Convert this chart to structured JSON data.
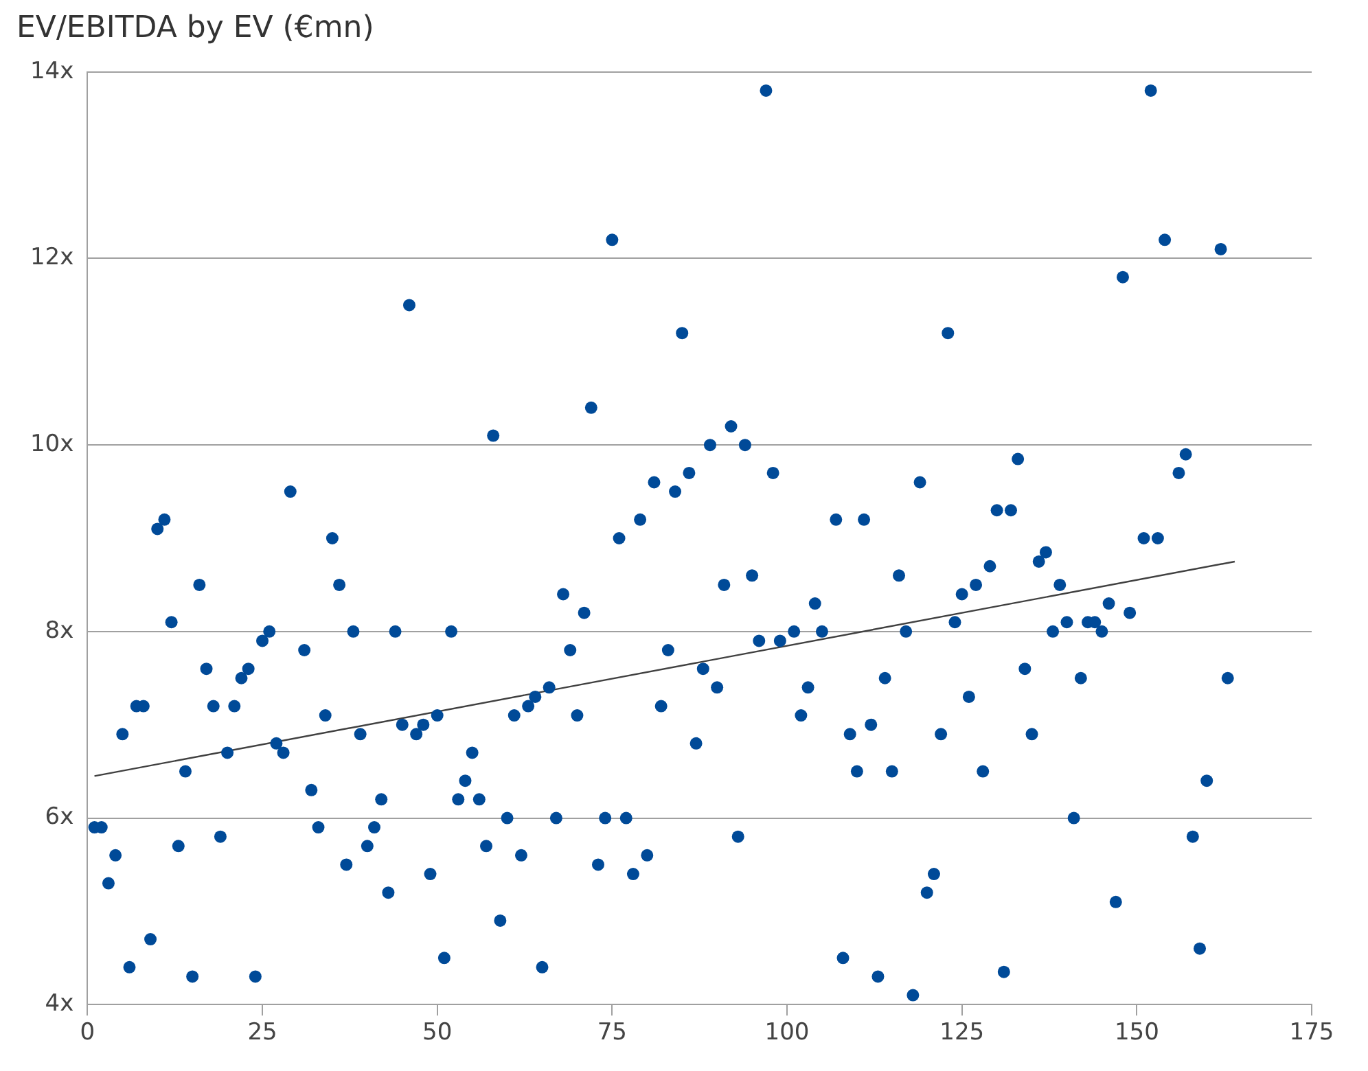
{
  "chart_data": {
    "type": "scatter",
    "title": "EV/EBITDA by EV (€mn)",
    "xlim": [
      0,
      175
    ],
    "xticks": [
      0,
      25,
      50,
      75,
      100,
      125,
      150,
      175
    ],
    "ylim": [
      4,
      14
    ],
    "yticks": [
      {
        "value": 4,
        "label": "4x"
      },
      {
        "value": 6,
        "label": "6x"
      },
      {
        "value": 8,
        "label": "8x"
      },
      {
        "value": 10,
        "label": "10x"
      },
      {
        "value": 12,
        "label": "12x"
      },
      {
        "value": 14,
        "label": "14x"
      }
    ],
    "grid": "y",
    "legend": false,
    "marker": "circle",
    "series": [
      {
        "type": "scatter",
        "color": "#004a98",
        "x": [
          1,
          2,
          3,
          4,
          5,
          6,
          7,
          8,
          9,
          10,
          11,
          12,
          13,
          14,
          15,
          16,
          17,
          18,
          19,
          20,
          21,
          22,
          23,
          24,
          25,
          26,
          27,
          28,
          29,
          31,
          32,
          33,
          34,
          35,
          36,
          37,
          38,
          39,
          40,
          41,
          42,
          43,
          44,
          45,
          46,
          47,
          48,
          49,
          50,
          51,
          52,
          53,
          54,
          55,
          56,
          57,
          58,
          59,
          60,
          61,
          62,
          63,
          64,
          65,
          66,
          67,
          68,
          69,
          70,
          71,
          72,
          73,
          74,
          75,
          76,
          77,
          78,
          79,
          80,
          81,
          82,
          83,
          84,
          85,
          86,
          87,
          88,
          89,
          90,
          91,
          92,
          93,
          94,
          95,
          96,
          97,
          98,
          99,
          101,
          102,
          103,
          104,
          105,
          107,
          108,
          109,
          110,
          111,
          112,
          113,
          114,
          115,
          116,
          117,
          118,
          119,
          120,
          121,
          122,
          123,
          124,
          125,
          126,
          127,
          128,
          129,
          130,
          131,
          132,
          133,
          134,
          135,
          136,
          137,
          138,
          139,
          140,
          141,
          142,
          143,
          144,
          145,
          146,
          147,
          148,
          149,
          151,
          152,
          153,
          154,
          156,
          157,
          158,
          159,
          160,
          162,
          163
        ],
        "values": [
          5.9,
          5.9,
          5.3,
          5.6,
          6.9,
          4.4,
          7.2,
          7.2,
          4.7,
          9.1,
          9.2,
          8.1,
          5.7,
          6.5,
          4.3,
          8.5,
          7.6,
          7.2,
          5.8,
          6.7,
          7.2,
          7.5,
          7.6,
          4.3,
          7.9,
          8.0,
          6.8,
          6.7,
          9.5,
          7.8,
          6.3,
          5.9,
          7.1,
          9.0,
          8.5,
          5.5,
          8.0,
          6.9,
          5.7,
          5.9,
          6.2,
          5.2,
          8.0,
          7.0,
          11.5,
          6.9,
          7.0,
          5.4,
          7.1,
          4.5,
          8.0,
          6.2,
          6.4,
          6.7,
          6.2,
          5.7,
          10.1,
          4.9,
          6.0,
          7.1,
          5.6,
          7.2,
          7.3,
          4.4,
          7.4,
          6.0,
          8.4,
          7.8,
          7.1,
          8.2,
          10.4,
          5.5,
          6.0,
          12.2,
          9.0,
          6.0,
          5.4,
          9.2,
          5.6,
          9.6,
          7.2,
          7.8,
          9.5,
          11.2,
          9.7,
          6.8,
          7.6,
          10.0,
          7.4,
          8.5,
          10.2,
          5.8,
          10.0,
          8.6,
          7.9,
          13.8,
          9.7,
          7.9,
          8.0,
          7.1,
          7.4,
          8.3,
          8.0,
          9.2,
          4.5,
          6.9,
          6.5,
          9.2,
          7.0,
          4.3,
          7.5,
          6.5,
          8.6,
          8.0,
          4.1,
          9.6,
          5.2,
          5.4,
          6.9,
          11.2,
          8.1,
          8.4,
          7.3,
          8.5,
          6.5,
          8.7,
          9.3,
          4.35,
          9.3,
          9.85,
          7.6,
          6.9,
          8.75,
          8.85,
          8.0,
          8.5,
          8.1,
          6.0,
          7.5,
          8.1,
          8.1,
          8.0,
          8.3,
          5.1,
          11.8,
          8.2,
          9.0,
          13.8,
          9.0,
          12.2,
          9.7,
          9.9,
          5.8,
          4.6,
          6.4,
          12.1,
          7.5
        ]
      },
      {
        "type": "line",
        "color": "#404040",
        "marker": "none",
        "x": [
          1,
          164
        ],
        "values": [
          6.45,
          8.75
        ]
      }
    ]
  }
}
